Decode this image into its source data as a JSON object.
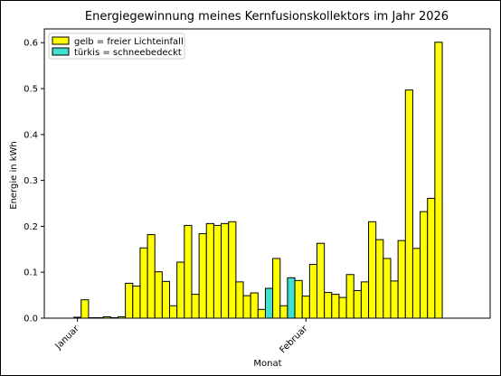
{
  "chart_data": {
    "type": "bar",
    "title": "Energiegewinnung meines Kernfusionskollektors im Jahr 2026",
    "xlabel": "Monat",
    "ylabel": "Energie in kWh",
    "ylim": [
      0,
      0.63
    ],
    "yticks": [
      "0.0",
      "0.1",
      "0.2",
      "0.3",
      "0.4",
      "0.5",
      "0.6"
    ],
    "xticks": [
      {
        "label": "Januar",
        "day": 1
      },
      {
        "label": "Februar",
        "day": 32
      }
    ],
    "grid": false,
    "legend_position": "top-left",
    "legend": [
      {
        "label": "gelb = freier Lichteinfall",
        "color": "#ffff00"
      },
      {
        "label": "türkis = schneebedeckt",
        "color": "#40e0d0"
      }
    ],
    "colors": {
      "yellow": "#ffff00",
      "turquoise": "#40e0d0",
      "edge": "#000000"
    },
    "series": [
      {
        "day": [
          1,
          2,
          3,
          4,
          5,
          6,
          7,
          8,
          9,
          10,
          11,
          12,
          13,
          14,
          15,
          16,
          17,
          18,
          19,
          20,
          21,
          22,
          23,
          24,
          25,
          26,
          27,
          28,
          29,
          30,
          31,
          32,
          33,
          34,
          35,
          36,
          37,
          38,
          39,
          40,
          41,
          42,
          43,
          44,
          45,
          46,
          47,
          48,
          49,
          50,
          51,
          52,
          53,
          54,
          55
        ],
        "values": [
          0.002,
          0.04,
          0.001,
          0.001,
          0.003,
          0.001,
          0.003,
          0.076,
          0.07,
          0.153,
          0.182,
          0.101,
          0.08,
          0.027,
          0.122,
          0.202,
          0.052,
          0.184,
          0.206,
          0.202,
          0.206,
          0.21,
          0.079,
          0.049,
          0.055,
          0.019,
          0.065,
          0.13,
          0.027,
          0.088,
          0.082,
          0.048,
          0.117,
          0.163,
          0.056,
          0.052,
          0.045,
          0.095,
          0.06,
          0.079,
          0.21,
          0.171,
          0.13,
          0.081,
          0.169,
          0.497,
          0.152,
          0.232,
          0.261,
          0.601,
          0,
          0,
          0,
          0,
          0
        ],
        "color": [
          "y",
          "y",
          "y",
          "y",
          "y",
          "y",
          "y",
          "y",
          "y",
          "y",
          "y",
          "y",
          "y",
          "y",
          "y",
          "y",
          "y",
          "y",
          "y",
          "y",
          "y",
          "y",
          "y",
          "y",
          "y",
          "y",
          "t",
          "y",
          "y",
          "t",
          "y",
          "y",
          "y",
          "y",
          "y",
          "y",
          "y",
          "y",
          "y",
          "y",
          "y",
          "y",
          "y",
          "y",
          "y",
          "y",
          "y",
          "y",
          "y",
          "y",
          "y",
          "y",
          "y",
          "y",
          "y"
        ]
      }
    ]
  }
}
